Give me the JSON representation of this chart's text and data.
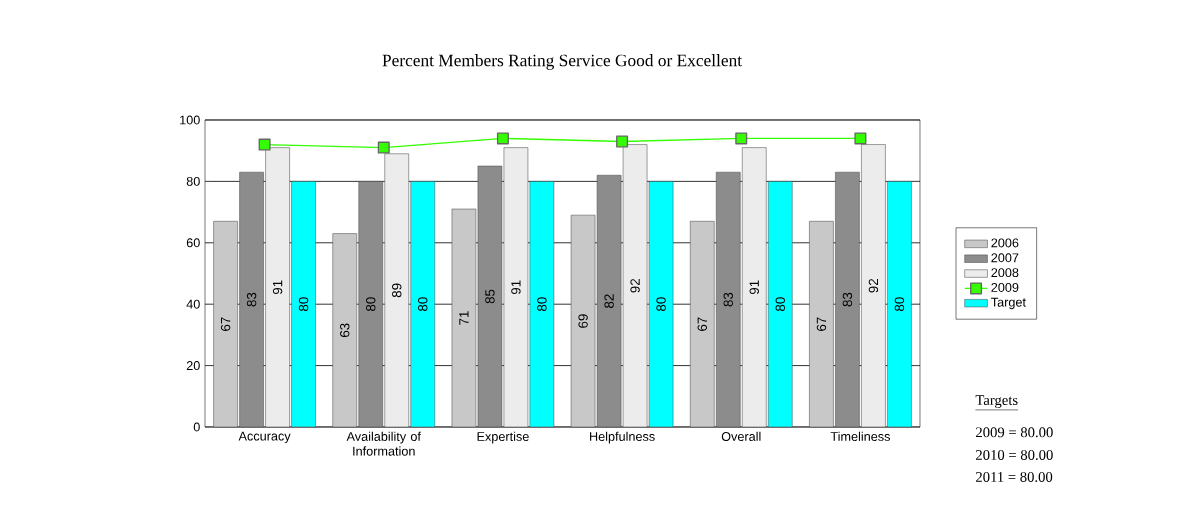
{
  "chart_data": {
    "type": "bar",
    "title": "Percent Members Rating Service Good or Excellent",
    "categories": [
      "Accuracy",
      "Availability of Information",
      "Expertise",
      "Helpfulness",
      "Overall",
      "Timeliness"
    ],
    "series": [
      {
        "name": "2006",
        "color": "#c8c8c8",
        "values": [
          67,
          63,
          71,
          69,
          67,
          67
        ],
        "value_labels": [
          "67",
          "63",
          "71",
          "69",
          "67",
          "67"
        ]
      },
      {
        "name": "2007",
        "color": "#8c8c8c",
        "values": [
          83,
          80,
          85,
          82,
          83,
          83
        ],
        "value_labels": [
          "83",
          "80",
          "85",
          "82",
          "83",
          "83"
        ]
      },
      {
        "name": "2008",
        "color": "#ececec",
        "values": [
          91,
          89,
          91,
          92,
          91,
          92
        ],
        "value_labels": [
          "91",
          "89",
          "91",
          "92",
          "91",
          "92"
        ]
      },
      {
        "name": "2009",
        "type": "line",
        "marker": "square",
        "color": "#33ff00",
        "values": [
          92,
          91,
          94,
          93,
          94,
          94
        ]
      },
      {
        "name": "Target",
        "color": "#00ffff",
        "values": [
          80,
          80,
          80,
          80,
          80,
          80
        ],
        "value_labels": [
          "80",
          "80",
          "80",
          "80",
          "80",
          "80"
        ]
      }
    ],
    "ylim": [
      0,
      100
    ],
    "yticks": [
      0,
      20,
      40,
      60,
      80,
      100
    ],
    "grid": "y",
    "legend": "right",
    "annotations": [
      "Targets",
      "2009 = 80.00",
      "2010 = 80.00",
      "2011 = 80.00"
    ]
  }
}
